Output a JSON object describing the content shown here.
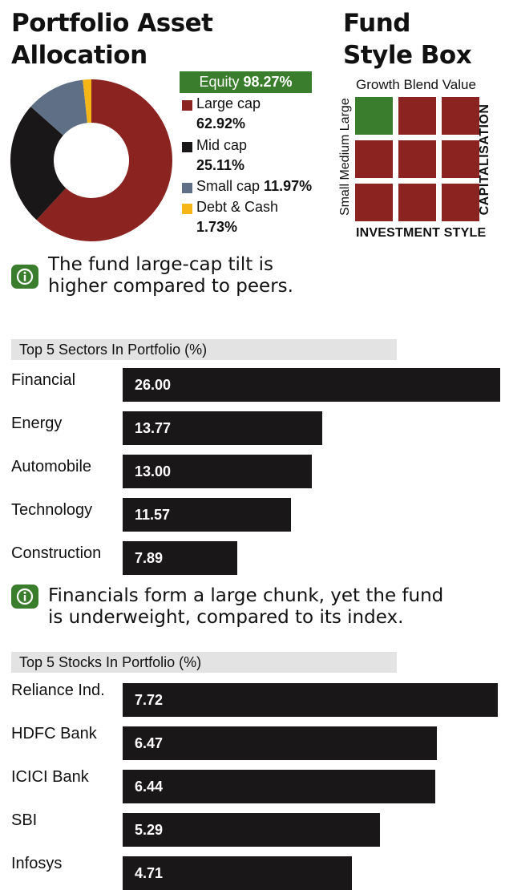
{
  "header": {
    "title_line1": "Portfolio Asset",
    "title_line2": "Allocation",
    "style_title_line1": "Fund",
    "style_title_line2": "Style Box"
  },
  "allocation": {
    "equity_label": "Equity",
    "equity_value": "98.27%",
    "items": [
      {
        "label": "Large cap",
        "value": "62.92%",
        "pct": 62.92,
        "color": "#8b2420"
      },
      {
        "label": "Mid cap",
        "value": "25.11%",
        "pct": 25.11,
        "color": "#1a1718"
      },
      {
        "label": "Small cap",
        "value": "11.97%",
        "pct": 11.97,
        "color": "#5e6f86"
      },
      {
        "label": "Debt & Cash",
        "value": "1.73%",
        "pct": 1.73,
        "color": "#f6b617"
      }
    ]
  },
  "style_box": {
    "columns_label": "Growth Blend Value",
    "rows_label": "Small Medium Large",
    "y_axis": "CAPITALISATION",
    "x_axis": "INVESTMENT STYLE",
    "highlight": {
      "row": "Large",
      "column": "Growth"
    },
    "colors": {
      "highlight": "#3a7d2c",
      "cell": "#8b2420"
    }
  },
  "notes": {
    "note1_line1": "The fund large-cap tilt is",
    "note1_line2": "higher compared to peers.",
    "note2_line1": "Financials form a large chunk, yet the fund",
    "note2_line2": "is underweight, compared to its index."
  },
  "chart_data": [
    {
      "type": "bar",
      "title": "Top 5 Sectors In Portfolio (%)",
      "categories": [
        "Financial",
        "Energy",
        "Automobile",
        "Technology",
        "Construction"
      ],
      "values": [
        26.0,
        13.77,
        13.0,
        11.57,
        7.89
      ],
      "value_labels": [
        "26.00",
        "13.77",
        "13.00",
        "11.57",
        "7.89"
      ],
      "orientation": "horizontal",
      "bar_color": "#1a1718"
    },
    {
      "type": "bar",
      "title": "Top 5 Stocks In Portfolio (%)",
      "categories": [
        "Reliance Ind.",
        "HDFC Bank",
        "ICICI Bank",
        "SBI",
        "Infosys"
      ],
      "values": [
        7.72,
        6.47,
        6.44,
        5.29,
        4.71
      ],
      "value_labels": [
        "7.72",
        "6.47",
        "6.44",
        "5.29",
        "4.71"
      ],
      "orientation": "horizontal",
      "bar_color": "#1a1718"
    }
  ]
}
